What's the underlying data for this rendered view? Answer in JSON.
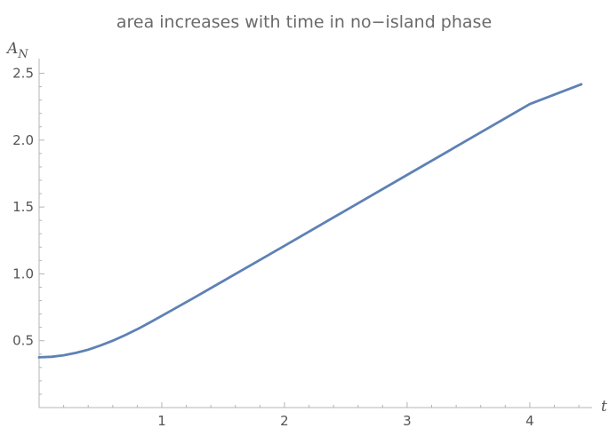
{
  "chart_data": {
    "type": "line",
    "title": "area increases with time in no−island phase",
    "xlabel": "t",
    "ylabel": {
      "base": "A",
      "subscript": "N"
    },
    "xlim": [
      0,
      4.45
    ],
    "ylim": [
      0.0,
      2.57
    ],
    "x_ticks": [
      1,
      2,
      3,
      4
    ],
    "x_tick_labels": [
      "1",
      "2",
      "3",
      "4"
    ],
    "y_ticks": [
      0.5,
      1.0,
      1.5,
      2.0,
      2.5
    ],
    "y_tick_labels": [
      "0.5",
      "1.0",
      "1.5",
      "2.0",
      "2.5"
    ],
    "grid": false,
    "series": [
      {
        "color": "#5e81b5",
        "x": [
          0,
          0.1,
          0.2,
          0.3,
          0.4,
          0.5,
          0.6,
          0.7,
          0.8,
          0.9,
          1.0,
          1.25,
          1.5,
          1.75,
          2.0,
          2.5,
          3.0,
          3.5,
          4.0,
          4.42
        ],
        "y": [
          0.376,
          0.38,
          0.391,
          0.409,
          0.433,
          0.464,
          0.5,
          0.541,
          0.586,
          0.635,
          0.686,
          0.815,
          0.946,
          1.078,
          1.21,
          1.475,
          1.74,
          2.005,
          2.27,
          2.418
        ]
      }
    ]
  }
}
